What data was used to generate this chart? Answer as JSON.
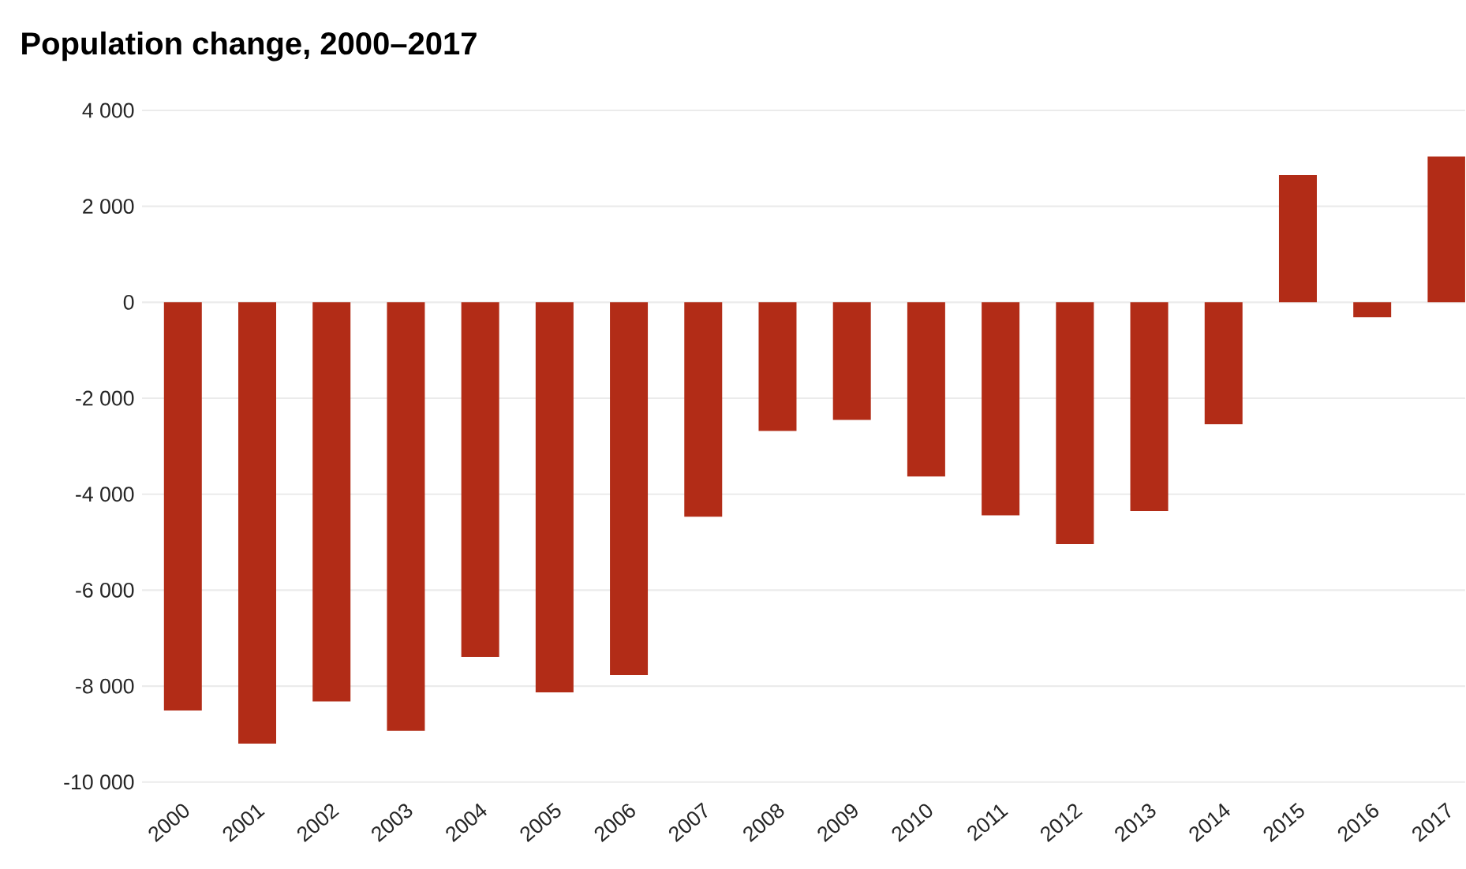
{
  "chart_data": {
    "type": "bar",
    "title": "Population change, 2000–2017",
    "categories": [
      "2000",
      "2001",
      "2002",
      "2003",
      "2004",
      "2005",
      "2006",
      "2007",
      "2008",
      "2009",
      "2010",
      "2011",
      "2012",
      "2013",
      "2014",
      "2015",
      "2016",
      "2017"
    ],
    "values": [
      -8510,
      -9200,
      -8320,
      -8930,
      -7390,
      -8130,
      -7770,
      -4470,
      -2680,
      -2450,
      -3630,
      -4440,
      -5040,
      -4350,
      -2540,
      2650,
      -310,
      3040
    ],
    "color": "#b22c17",
    "ylim": [
      -10000,
      4000
    ],
    "yticks": [
      {
        "value": -10000,
        "label": "-10 000"
      },
      {
        "value": -8000,
        "label": "-8 000"
      },
      {
        "value": -6000,
        "label": "-6 000"
      },
      {
        "value": -4000,
        "label": "-4 000"
      },
      {
        "value": -2000,
        "label": "-2 000"
      },
      0,
      {
        "value": 2000,
        "label": "2 000"
      },
      {
        "value": 4000,
        "label": "4 000"
      }
    ],
    "grid": "y"
  }
}
